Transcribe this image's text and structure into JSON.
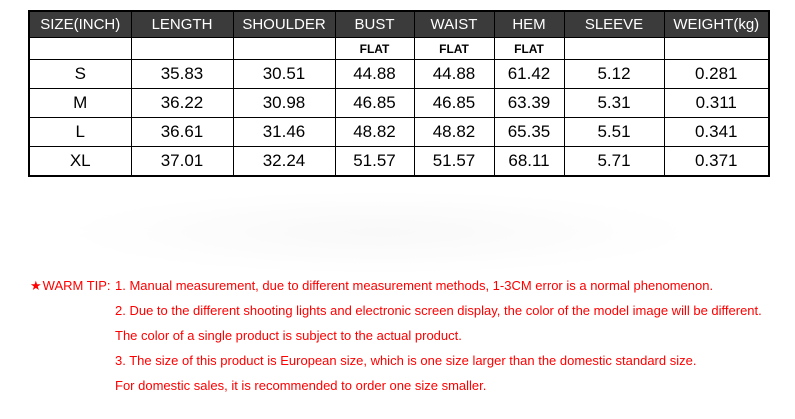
{
  "size_table": {
    "header": [
      "SIZE(INCH)",
      "LENGTH",
      "SHOULDER",
      "BUST",
      "WAIST",
      "HEM",
      "SLEEVE",
      "WEIGHT(kg)"
    ],
    "flat_row": [
      "",
      "",
      "",
      "FLAT",
      "FLAT",
      "FLAT",
      "",
      ""
    ],
    "rows": [
      [
        "S",
        "35.83",
        "30.51",
        "44.88",
        "44.88",
        "61.42",
        "5.12",
        "0.281"
      ],
      [
        "M",
        "36.22",
        "30.98",
        "46.85",
        "46.85",
        "63.39",
        "5.31",
        "0.311"
      ],
      [
        "L",
        "36.61",
        "31.46",
        "48.82",
        "48.82",
        "65.35",
        "5.51",
        "0.341"
      ],
      [
        "XL",
        "37.01",
        "32.24",
        "51.57",
        "51.57",
        "68.11",
        "5.71",
        "0.371"
      ]
    ],
    "header_bg": "#3b3b3b",
    "header_text_color": "#ffffff",
    "border_color": "#000000"
  },
  "warm_tip": {
    "star": "★",
    "label": "WARM TIP:",
    "color": "#ff0000",
    "lines": [
      "1. Manual measurement, due to different measurement methods, 1-3CM error is a normal phenomenon.",
      "2. Due to the different shooting lights and electronic screen display, the  color of the model image will be different.",
      "The color of a single product is subject to the actual product.",
      "3. The size of this product is European size, which is one size larger than the domestic standard size.",
      "For domestic sales, it is recommended to order one size smaller."
    ]
  },
  "chart_data": {
    "type": "table",
    "columns": [
      "SIZE(INCH)",
      "LENGTH",
      "SHOULDER",
      "BUST",
      "WAIST",
      "HEM",
      "SLEEVE",
      "WEIGHT(kg)"
    ],
    "flat_measured_columns": [
      "BUST",
      "WAIST",
      "HEM"
    ],
    "rows": [
      {
        "size": "S",
        "length": 35.83,
        "shoulder": 30.51,
        "bust": 44.88,
        "waist": 44.88,
        "hem": 61.42,
        "sleeve": 5.12,
        "weight_kg": 0.281
      },
      {
        "size": "M",
        "length": 36.22,
        "shoulder": 30.98,
        "bust": 46.85,
        "waist": 46.85,
        "hem": 63.39,
        "sleeve": 5.31,
        "weight_kg": 0.311
      },
      {
        "size": "L",
        "length": 36.61,
        "shoulder": 31.46,
        "bust": 48.82,
        "waist": 48.82,
        "hem": 65.35,
        "sleeve": 5.51,
        "weight_kg": 0.341
      },
      {
        "size": "XL",
        "length": 37.01,
        "shoulder": 32.24,
        "bust": 51.57,
        "waist": 51.57,
        "hem": 68.11,
        "sleeve": 5.71,
        "weight_kg": 0.371
      }
    ]
  }
}
